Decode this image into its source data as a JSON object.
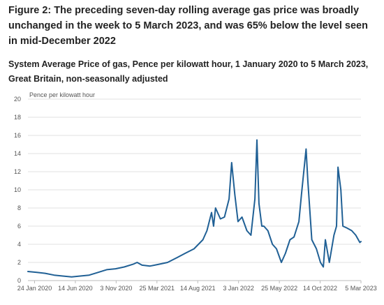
{
  "figure": {
    "title": "Figure 2: The preceding seven-day rolling average gas price was broadly unchanged in the week to 5 March 2023, and was 65% below the level seen in mid-December 2022",
    "subtitle": "System Average Price of gas, Pence per kilowatt hour, 1 January 2020 to 5 March 2023, Great Britain, non-seasonally adjusted"
  },
  "chart_data": {
    "type": "line",
    "ylabel": "Pence per kilowatt hour",
    "ylim": [
      0,
      20
    ],
    "yticks": [
      0,
      2,
      4,
      6,
      8,
      10,
      12,
      14,
      16,
      18,
      20
    ],
    "xlim": [
      "2020-01-01",
      "2023-03-05"
    ],
    "xticks": [
      {
        "date": "2020-01-24",
        "label": "24 Jan 2020"
      },
      {
        "date": "2020-06-14",
        "label": "14 Jun 2020"
      },
      {
        "date": "2020-11-03",
        "label": "3 Nov 2020"
      },
      {
        "date": "2021-03-25",
        "label": "25 Mar 2021"
      },
      {
        "date": "2021-08-14",
        "label": "14 Aug 2021"
      },
      {
        "date": "2022-01-03",
        "label": "3 Jan 2022"
      },
      {
        "date": "2022-05-25",
        "label": "25 May 2022"
      },
      {
        "date": "2022-10-14",
        "label": "14 Oct 2022"
      },
      {
        "date": "2023-03-05",
        "label": "5 Mar 2023"
      }
    ],
    "grid": true,
    "line_color": "#206095",
    "series": [
      {
        "x": [
          "2020-01-01",
          "2020-02-01",
          "2020-03-01",
          "2020-04-01",
          "2020-05-01",
          "2020-06-01",
          "2020-07-01",
          "2020-08-01",
          "2020-09-01",
          "2020-10-01",
          "2020-11-01",
          "2020-12-01",
          "2021-01-01",
          "2021-01-15",
          "2021-02-01",
          "2021-03-01",
          "2021-04-01",
          "2021-05-01",
          "2021-06-01",
          "2021-07-01",
          "2021-08-01",
          "2021-09-01",
          "2021-09-15",
          "2021-10-01",
          "2021-10-08",
          "2021-10-15",
          "2021-11-01",
          "2021-11-15",
          "2021-12-01",
          "2021-12-10",
          "2021-12-21",
          "2022-01-01",
          "2022-01-15",
          "2022-02-01",
          "2022-02-15",
          "2022-03-01",
          "2022-03-08",
          "2022-03-15",
          "2022-03-25",
          "2022-04-01",
          "2022-04-15",
          "2022-05-01",
          "2022-05-15",
          "2022-06-01",
          "2022-06-15",
          "2022-07-01",
          "2022-07-15",
          "2022-08-01",
          "2022-08-10",
          "2022-08-26",
          "2022-09-01",
          "2022-09-15",
          "2022-10-01",
          "2022-10-15",
          "2022-10-25",
          "2022-11-01",
          "2022-11-15",
          "2022-12-01",
          "2022-12-10",
          "2022-12-15",
          "2022-12-25",
          "2023-01-01",
          "2023-01-15",
          "2023-02-01",
          "2023-02-15",
          "2023-03-01",
          "2023-03-05"
        ],
        "y": [
          1.0,
          0.9,
          0.8,
          0.6,
          0.5,
          0.4,
          0.5,
          0.6,
          0.9,
          1.2,
          1.3,
          1.5,
          1.8,
          2.0,
          1.7,
          1.6,
          1.8,
          2.0,
          2.5,
          3.0,
          3.5,
          4.5,
          5.5,
          7.5,
          6.0,
          8.0,
          6.8,
          7.0,
          9.0,
          13.0,
          9.5,
          6.5,
          7.0,
          5.5,
          5.0,
          9.0,
          15.5,
          8.5,
          6.0,
          6.0,
          5.5,
          4.0,
          3.5,
          2.0,
          3.0,
          4.5,
          4.8,
          6.5,
          9.5,
          14.5,
          11.0,
          4.5,
          3.5,
          2.0,
          1.5,
          4.5,
          2.0,
          5.0,
          6.0,
          12.5,
          10.0,
          6.0,
          5.8,
          5.5,
          5.0,
          4.2,
          4.3
        ]
      }
    ]
  }
}
